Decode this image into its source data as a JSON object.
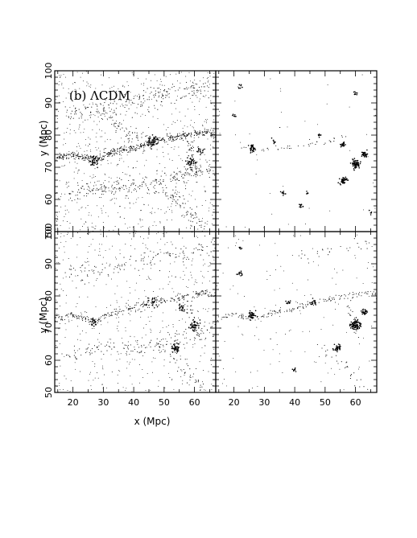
{
  "chart_data": {
    "type": "scatter",
    "panel_label": "(b) ΛCDM",
    "xlabel": "x (Mpc)",
    "ylabel": "y (Mpc)",
    "xlim": [
      14,
      67
    ],
    "ylim": [
      50,
      100
    ],
    "xticks": [
      20,
      30,
      40,
      50,
      60
    ],
    "yticks": [
      50,
      60,
      70,
      80,
      90,
      100
    ],
    "grid": false,
    "panels": [
      {
        "name": "top-left",
        "filaments": [
          {
            "points": [
              [
                14,
                73
              ],
              [
                20,
                74
              ],
              [
                27,
                72
              ],
              [
                34,
                75
              ],
              [
                40,
                76
              ],
              [
                46,
                78
              ],
              [
                52,
                79
              ],
              [
                58,
                80
              ],
              [
                64,
                81
              ],
              [
                67,
                80
              ]
            ],
            "density": 9,
            "width": 1.1
          },
          {
            "points": [
              [
                18,
                87
              ],
              [
                28,
                88
              ],
              [
                38,
                90
              ],
              [
                48,
                92
              ],
              [
                58,
                94
              ],
              [
                66,
                95
              ]
            ],
            "density": 4,
            "width": 3.0
          },
          {
            "points": [
              [
                18,
                62
              ],
              [
                26,
                63
              ],
              [
                34,
                64
              ],
              [
                42,
                64
              ],
              [
                50,
                66
              ],
              [
                58,
                68
              ],
              [
                66,
                70
              ]
            ],
            "density": 4,
            "width": 2.5
          },
          {
            "points": [
              [
                48,
                64
              ],
              [
                51,
                62
              ],
              [
                54,
                60
              ],
              [
                57,
                57
              ],
              [
                60,
                54
              ],
              [
                63,
                51
              ]
            ],
            "density": 4,
            "width": 2.0
          },
          {
            "points": [
              [
                30,
                86
              ],
              [
                35,
                83
              ],
              [
                40,
                80
              ],
              [
                44,
                78
              ]
            ],
            "density": 3,
            "width": 2.0
          },
          {
            "points": [
              [
                58,
                78
              ],
              [
                59,
                74
              ],
              [
                60,
                71
              ],
              [
                61,
                67
              ]
            ],
            "density": 5,
            "width": 1.5
          }
        ],
        "clumps": [
          [
            27,
            72,
            0.9,
            35
          ],
          [
            46,
            78,
            1.0,
            40
          ],
          [
            59,
            71,
            1.0,
            30
          ],
          [
            62,
            75,
            0.8,
            15
          ]
        ],
        "background": 700
      },
      {
        "name": "top-right",
        "filaments": [
          {
            "points": [
              [
                22,
                76
              ],
              [
                28,
                75
              ],
              [
                35,
                76
              ],
              [
                42,
                77
              ],
              [
                50,
                78
              ],
              [
                58,
                80
              ]
            ],
            "density": 1.2,
            "width": 1.0
          }
        ],
        "clumps": [
          [
            60,
            71,
            0.7,
            70
          ],
          [
            56,
            66,
            0.6,
            45
          ],
          [
            26,
            76,
            0.5,
            30
          ],
          [
            63,
            74,
            0.5,
            30
          ],
          [
            56,
            77,
            0.4,
            20
          ],
          [
            42,
            58,
            0.4,
            12
          ],
          [
            36,
            62,
            0.4,
            10
          ],
          [
            60,
            93,
            0.3,
            8
          ],
          [
            22,
            95,
            0.4,
            8
          ],
          [
            48,
            80,
            0.3,
            8
          ],
          [
            20,
            86,
            0.3,
            6
          ],
          [
            33,
            78,
            0.3,
            8
          ],
          [
            44,
            62,
            0.3,
            6
          ],
          [
            65,
            56,
            0.3,
            5
          ]
        ],
        "background": 45
      },
      {
        "name": "bottom-left",
        "filaments": [
          {
            "points": [
              [
                14,
                73
              ],
              [
                20,
                74
              ],
              [
                27,
                72
              ],
              [
                34,
                75
              ],
              [
                40,
                76
              ],
              [
                46,
                78
              ],
              [
                52,
                79
              ],
              [
                58,
                80
              ],
              [
                64,
                81
              ],
              [
                67,
                80
              ]
            ],
            "density": 5,
            "width": 1.2
          },
          {
            "points": [
              [
                18,
                87
              ],
              [
                28,
                88
              ],
              [
                38,
                90
              ],
              [
                48,
                92
              ],
              [
                58,
                94
              ],
              [
                66,
                95
              ]
            ],
            "density": 2.5,
            "width": 3.0
          },
          {
            "points": [
              [
                18,
                62
              ],
              [
                26,
                63
              ],
              [
                34,
                64
              ],
              [
                42,
                64
              ],
              [
                50,
                66
              ],
              [
                58,
                68
              ],
              [
                66,
                70
              ]
            ],
            "density": 2.5,
            "width": 2.5
          },
          {
            "points": [
              [
                48,
                64
              ],
              [
                51,
                62
              ],
              [
                54,
                60
              ],
              [
                57,
                57
              ],
              [
                60,
                54
              ],
              [
                63,
                51
              ]
            ],
            "density": 2.5,
            "width": 2.0
          },
          {
            "points": [
              [
                58,
                78
              ],
              [
                59,
                74
              ],
              [
                60,
                71
              ],
              [
                61,
                67
              ]
            ],
            "density": 3,
            "width": 1.5
          }
        ],
        "clumps": [
          [
            54,
            64,
            0.7,
            40
          ],
          [
            60,
            71,
            0.8,
            40
          ],
          [
            56,
            76,
            0.6,
            20
          ],
          [
            27,
            72,
            0.7,
            20
          ],
          [
            46,
            78,
            0.8,
            20
          ]
        ],
        "background": 480
      },
      {
        "name": "bottom-right",
        "filaments": [
          {
            "points": [
              [
                14,
                73
              ],
              [
                20,
                74
              ],
              [
                27,
                73
              ],
              [
                34,
                75
              ],
              [
                40,
                76
              ],
              [
                46,
                78
              ],
              [
                52,
                79
              ],
              [
                58,
                80
              ],
              [
                64,
                81
              ],
              [
                67,
                80
              ]
            ],
            "density": 3,
            "width": 1.0
          },
          {
            "points": [
              [
                48,
                64
              ],
              [
                51,
                62
              ],
              [
                54,
                60
              ],
              [
                57,
                57
              ],
              [
                60,
                54
              ],
              [
                63,
                51
              ]
            ],
            "density": 1.5,
            "width": 1.5
          },
          {
            "points": [
              [
                40,
                92
              ],
              [
                46,
                93
              ],
              [
                52,
                94
              ],
              [
                58,
                95
              ],
              [
                64,
                96
              ]
            ],
            "density": 1.2,
            "width": 2.0
          },
          {
            "points": [
              [
                58,
                78
              ],
              [
                59,
                74
              ],
              [
                60,
                71
              ],
              [
                61,
                67
              ]
            ],
            "density": 2.5,
            "width": 1.2
          }
        ],
        "clumps": [
          [
            60,
            71,
            0.8,
            80
          ],
          [
            26,
            74,
            0.6,
            35
          ],
          [
            54,
            64,
            0.6,
            30
          ],
          [
            63,
            75,
            0.5,
            25
          ],
          [
            22,
            87,
            0.4,
            12
          ],
          [
            46,
            78,
            0.5,
            15
          ],
          [
            38,
            78,
            0.4,
            10
          ],
          [
            40,
            57,
            0.3,
            8
          ],
          [
            22,
            95,
            0.3,
            6
          ]
        ],
        "background": 130
      }
    ]
  }
}
